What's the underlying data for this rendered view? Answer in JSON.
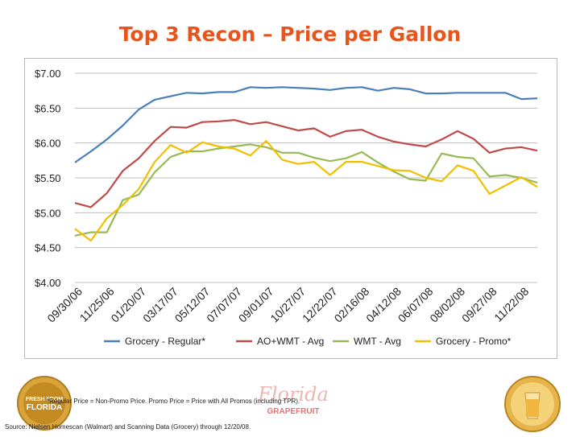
{
  "title": "Top 3 Recon – Price per Gallon",
  "footnote": "*Regular Price = Non-Promo Price. Promo Price = Price with All Promos (including TPR).",
  "source": "Source: Nielsen Homescan (Walmart) and Scanning Data (Grocery) through 12/20/08.",
  "logos": {
    "left_text": "FRESH FROM FLORIDA",
    "brand_script": "Florida",
    "brand_word": "GRAPEFRUIT"
  },
  "colors": {
    "title": "#e8541c",
    "grocery_regular": "#4a7ebb",
    "ao_wmt": "#be4b48",
    "wmt": "#98b954",
    "grocery_promo": "#f0c000"
  },
  "chart_data": {
    "type": "line",
    "title": "",
    "xlabel": "",
    "ylabel": "",
    "ylim": [
      4.0,
      7.0
    ],
    "y_ticks": [
      "$4.00",
      "$4.50",
      "$5.00",
      "$5.50",
      "$6.00",
      "$6.50",
      "$7.00"
    ],
    "y_tick_values": [
      4.0,
      4.5,
      5.0,
      5.5,
      6.0,
      6.5,
      7.0
    ],
    "x_tick_labels": [
      "09/30/06",
      "11/25/06",
      "01/20/07",
      "03/17/07",
      "05/12/07",
      "07/07/07",
      "09/01/07",
      "10/27/07",
      "12/22/07",
      "02/16/08",
      "04/12/08",
      "06/07/08",
      "08/02/08",
      "09/27/08",
      "11/22/08"
    ],
    "n_points": 30,
    "grid": true,
    "legend_position": "bottom",
    "series": [
      {
        "name": "Grocery - Regular*",
        "color": "#4a7ebb",
        "values": [
          5.72,
          5.88,
          6.05,
          6.25,
          6.48,
          6.62,
          6.67,
          6.72,
          6.71,
          6.73,
          6.73,
          6.8,
          6.79,
          6.8,
          6.79,
          6.78,
          6.76,
          6.79,
          6.8,
          6.75,
          6.79,
          6.77,
          6.71,
          6.71,
          6.72,
          6.72,
          6.72,
          6.72,
          6.63,
          6.64
        ]
      },
      {
        "name": "AO+WMT - Avg",
        "color": "#be4b48",
        "values": [
          5.14,
          5.08,
          5.28,
          5.6,
          5.78,
          6.03,
          6.23,
          6.22,
          6.3,
          6.31,
          6.33,
          6.27,
          6.3,
          6.24,
          6.18,
          6.21,
          6.09,
          6.17,
          6.19,
          6.09,
          6.02,
          5.98,
          5.95,
          6.05,
          6.17,
          6.06,
          5.86,
          5.92,
          5.94,
          5.89
        ]
      },
      {
        "name": "WMT - Avg",
        "color": "#98b954",
        "values": [
          4.67,
          4.72,
          4.72,
          5.18,
          5.26,
          5.58,
          5.8,
          5.88,
          5.88,
          5.92,
          5.95,
          5.98,
          5.94,
          5.86,
          5.86,
          5.79,
          5.74,
          5.78,
          5.87,
          5.72,
          5.59,
          5.48,
          5.46,
          5.85,
          5.8,
          5.78,
          5.52,
          5.54,
          5.5,
          5.43
        ]
      },
      {
        "name": "Grocery - Promo*",
        "color": "#f0c000",
        "values": [
          4.77,
          4.6,
          4.92,
          5.11,
          5.34,
          5.73,
          5.97,
          5.86,
          6.01,
          5.95,
          5.92,
          5.82,
          6.03,
          5.76,
          5.7,
          5.73,
          5.54,
          5.73,
          5.73,
          5.67,
          5.61,
          5.6,
          5.5,
          5.45,
          5.68,
          5.6,
          5.27,
          5.39,
          5.51,
          5.37
        ]
      }
    ]
  }
}
